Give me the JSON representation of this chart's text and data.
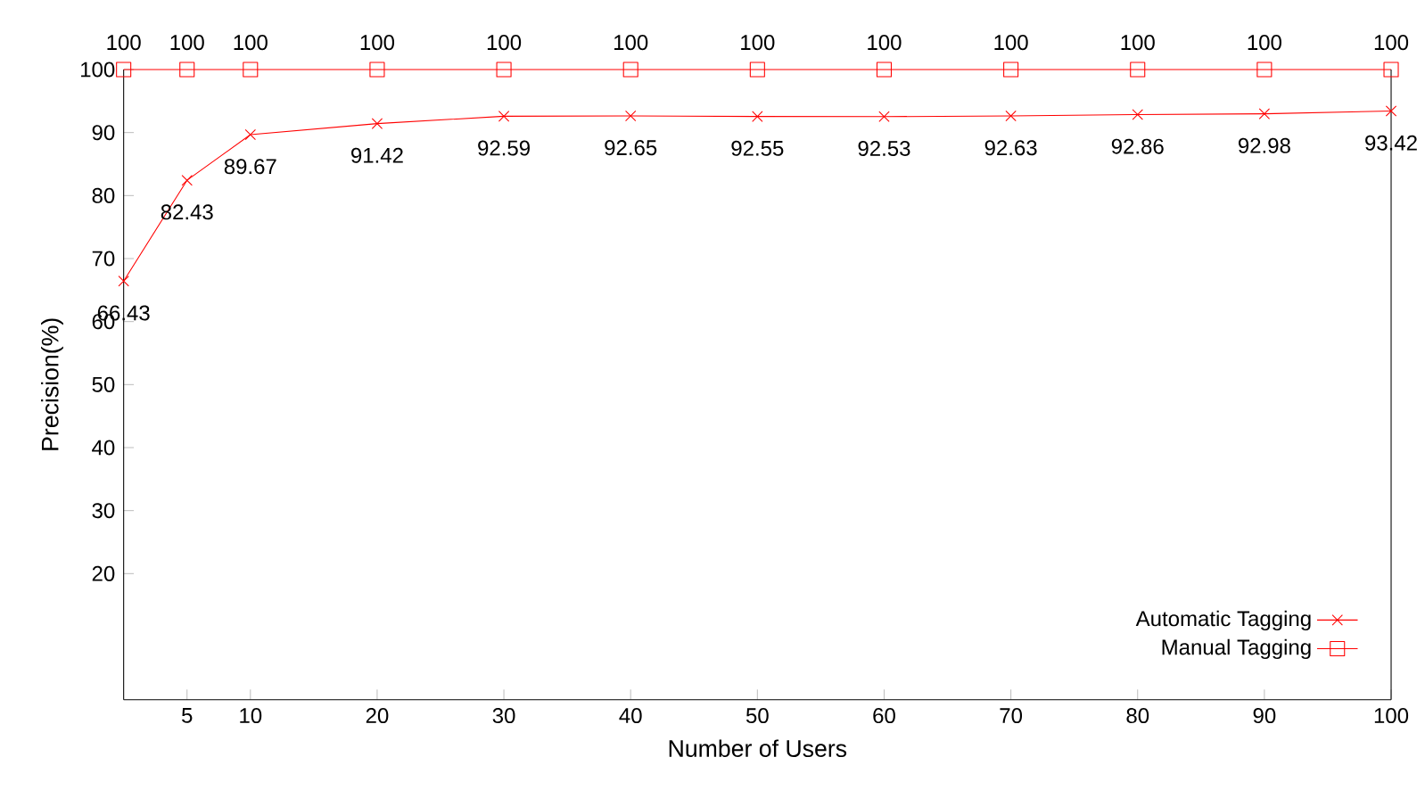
{
  "chart_data": {
    "type": "line",
    "xlabel": "Number of Users",
    "ylabel": "Precision(%)",
    "x": [
      0,
      5,
      10,
      20,
      30,
      40,
      50,
      60,
      70,
      80,
      90,
      100
    ],
    "series": [
      {
        "name": "Automatic Tagging",
        "color": "#ff0000",
        "marker": "cross",
        "values": [
          66.43,
          82.43,
          89.67,
          91.42,
          92.59,
          92.65,
          92.55,
          92.53,
          92.63,
          92.86,
          92.98,
          93.42
        ]
      },
      {
        "name": "Manual Tagging",
        "color": "#ff0000",
        "marker": "square",
        "values": [
          100,
          100,
          100,
          100,
          100,
          100,
          100,
          100,
          100,
          100,
          100,
          100
        ]
      }
    ],
    "xlim": [
      0,
      100
    ],
    "ylim": [
      0,
      100
    ],
    "xticks": [
      5,
      10,
      20,
      30,
      40,
      50,
      60,
      70,
      80,
      90,
      100
    ],
    "yticks": [
      20,
      30,
      40,
      50,
      60,
      70,
      80,
      90,
      100
    ],
    "data_labels": true,
    "grid": false,
    "legend": "bottom right",
    "line_style": "solid"
  }
}
